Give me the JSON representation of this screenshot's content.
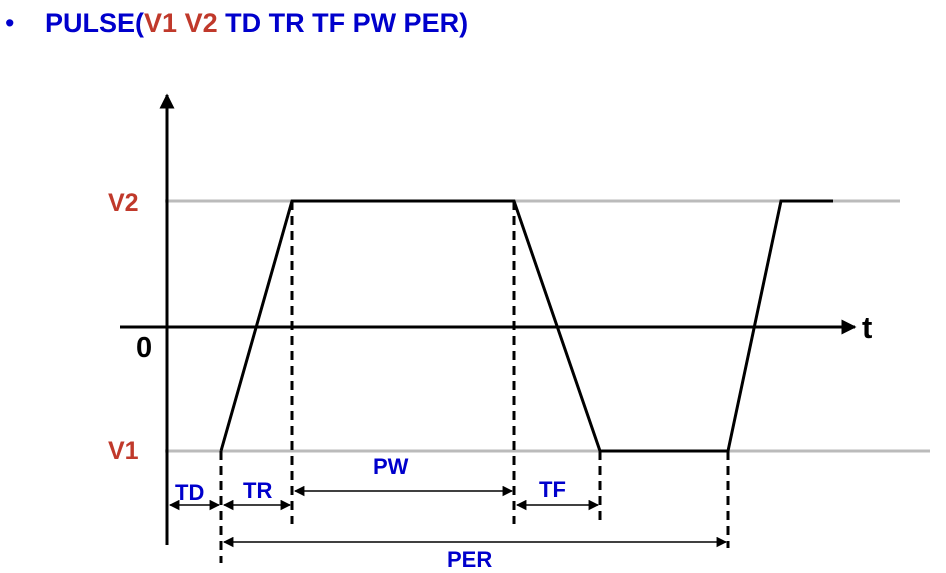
{
  "title": {
    "bullet": "•",
    "prefix": "PULSE(",
    "v1": "V1",
    "v2": "V2",
    "rest": " TD TR TF PW PER)"
  },
  "colors": {
    "blue": "#0000cc",
    "red": "#c0392b",
    "level_line": "#bbbbbb",
    "ink": "#000000"
  },
  "diagram": {
    "level_v2": "V2",
    "level_zero": "0",
    "level_v1": "V1",
    "time_axis": "t",
    "td": "TD",
    "tr": "TR",
    "pw": "PW",
    "tf": "TF",
    "per": "PER"
  }
}
